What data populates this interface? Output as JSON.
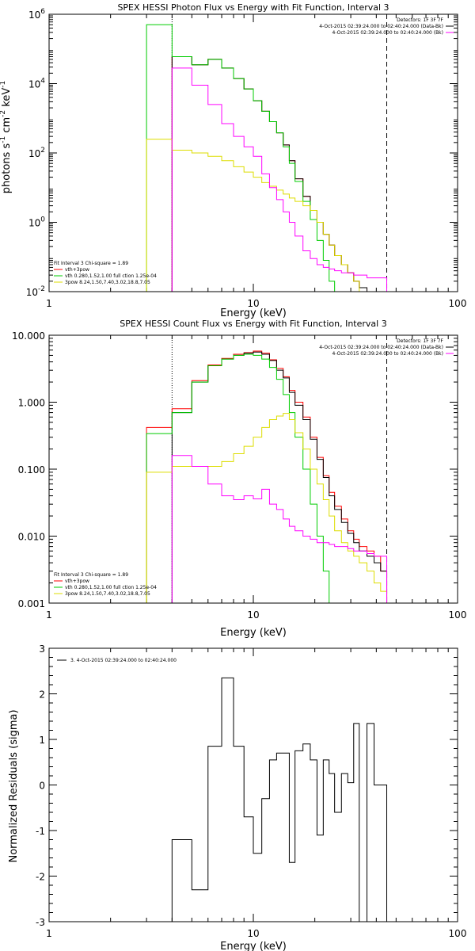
{
  "chart_data": [
    {
      "type": "line",
      "title": "SPEX HESSI Photon Flux vs Energy with Fit Function, Interval 3",
      "xlabel": "Energy (keV)",
      "ylabel_parts": [
        "photons s",
        "-1",
        " cm",
        "-2",
        " keV",
        "-1"
      ],
      "xscale": "log",
      "yscale": "log",
      "xlim": [
        1,
        100
      ],
      "ylim": [
        0.01,
        1000000
      ],
      "xticks": [
        {
          "v": 1,
          "label": "1"
        },
        {
          "v": 10,
          "label": "10"
        },
        {
          "v": 100,
          "label": "100"
        }
      ],
      "yticks": [
        {
          "v": 0.01,
          "base": "10",
          "exp": "-2"
        },
        {
          "v": 1,
          "base": "10",
          "exp": "0"
        },
        {
          "v": 100,
          "base": "10",
          "exp": "2"
        },
        {
          "v": 10000,
          "base": "10",
          "exp": "4"
        },
        {
          "v": 1000000,
          "base": "10",
          "exp": "6"
        }
      ],
      "vlines": [
        {
          "x": 4.0,
          "style": "dotted"
        },
        {
          "x": 45.0,
          "style": "dashed"
        }
      ],
      "legend_tr": [
        {
          "text": "Detectors: 1F 3F 7F",
          "color": ""
        },
        {
          "text": "4-Oct-2015 02:39:24.000 to 02:40:24.000 (Data-Bk)",
          "color": "#000000"
        },
        {
          "text": "4-Oct-2015 02:39:24.000 to 02:40:24.000 (Bk)",
          "color": "#ff00ff"
        }
      ],
      "legend_bl": [
        {
          "text": "Fit Interval 3   Chi-square = 1.89",
          "color": ""
        },
        {
          "text": "vth+3pow",
          "color": "#ff0000"
        },
        {
          "text": "vth 0.280,1.52,1.00  full ction 1.25e-04",
          "color": "#00cc00"
        },
        {
          "text": "3pow 8.24,1.50,7.40,3.02,18.8,7.05",
          "color": "#dddd00"
        }
      ],
      "edges": [
        3.0,
        4.0,
        5.0,
        6.0,
        7.0,
        8.0,
        9.0,
        10.0,
        11.0,
        12.0,
        13.0,
        14.0,
        15.0,
        16.0,
        17.5,
        19.0,
        20.5,
        22.0,
        23.5,
        25.0,
        27.0,
        29.0,
        31.0,
        33.0,
        36.0,
        39.0,
        42.0,
        45.0
      ],
      "series": [
        {
          "name": "vth+3pow",
          "color": "#ff0000",
          "start": 1,
          "values": [
            60000,
            35000,
            50000,
            28000,
            14000,
            7000,
            3200,
            1600,
            800,
            380,
            170,
            60,
            18,
            5.6,
            2.2,
            1.0,
            0.45,
            0.22,
            0.11,
            0.06,
            0.035,
            0.02,
            0.013,
            0.01,
            0.01,
            0.01
          ]
        },
        {
          "name": "Data-Bk",
          "color": "#000000",
          "start": 1,
          "values": [
            60000,
            35000,
            50000,
            28000,
            14000,
            7000,
            3200,
            1600,
            800,
            380,
            170,
            60,
            18,
            5.6,
            2.2,
            1.0,
            0.45,
            0.22,
            0.11,
            0.06,
            0.035,
            0.02,
            0.013,
            0.01,
            0.01,
            0.01
          ]
        },
        {
          "name": "vth",
          "color": "#00cc00",
          "start": 0,
          "values": [
            500000,
            60000,
            35000,
            50000,
            28000,
            14000,
            7000,
            3200,
            1600,
            800,
            380,
            150,
            50,
            15,
            4,
            1.2,
            0.3,
            0.08,
            0.02,
            0.01,
            0.01
          ]
        },
        {
          "name": "3pow",
          "color": "#dddd00",
          "start": 0,
          "values": [
            250,
            120,
            100,
            80,
            60,
            40,
            28,
            20,
            14,
            11,
            8.5,
            6.5,
            5.0,
            4.0,
            3.0,
            2.2,
            1.0,
            0.45,
            0.22,
            0.11,
            0.06,
            0.035,
            0.02,
            0.01,
            0.01,
            0.01,
            0.01
          ]
        },
        {
          "name": "Bk",
          "color": "#ff00ff",
          "start": 1,
          "values": [
            28000,
            9000,
            2500,
            700,
            300,
            150,
            80,
            25,
            10,
            4.5,
            2.0,
            1.0,
            0.4,
            0.15,
            0.09,
            0.06,
            0.05,
            0.045,
            0.04,
            0.035,
            0.035,
            0.03,
            0.03,
            0.025,
            0.025,
            0.025
          ]
        }
      ]
    },
    {
      "type": "line",
      "title": "SPEX HESSI Count Flux vs Energy with Fit Function, Interval 3",
      "xlabel": "Energy (keV)",
      "ylabel_parts": [],
      "xscale": "log",
      "yscale": "log",
      "xlim": [
        1,
        100
      ],
      "ylim": [
        0.001,
        10
      ],
      "xticks": [
        {
          "v": 1,
          "label": "1"
        },
        {
          "v": 10,
          "label": "10"
        },
        {
          "v": 100,
          "label": "100"
        }
      ],
      "yticks": [
        {
          "v": 0.001,
          "label": "0.001"
        },
        {
          "v": 0.01,
          "label": "0.010"
        },
        {
          "v": 0.1,
          "label": "0.100"
        },
        {
          "v": 1,
          "label": "1.000"
        },
        {
          "v": 10,
          "label": "10.000"
        }
      ],
      "vlines": [
        {
          "x": 4.0,
          "style": "dotted"
        },
        {
          "x": 45.0,
          "style": "dashed"
        }
      ],
      "legend_tr": [
        {
          "text": "Detectors: 1F 3F 7F",
          "color": ""
        },
        {
          "text": "4-Oct-2015 02:39:24.000 to 02:40:24.000 (Data-Bk)",
          "color": "#000000"
        },
        {
          "text": "4-Oct-2015 02:39:24.000 to 02:40:24.000 (Bk)",
          "color": "#ff00ff"
        }
      ],
      "legend_bl": [
        {
          "text": "Fit Interval 3   Chi-square = 1.89",
          "color": ""
        },
        {
          "text": "vth+3pow",
          "color": "#ff0000"
        },
        {
          "text": "vth 0.280,1.52,1.00  full ction 1.25e-04",
          "color": "#00cc00"
        },
        {
          "text": "3pow 8.24,1.50,7.40,3.02,18.8,7.05",
          "color": "#dddd00"
        }
      ],
      "edges": [
        3.0,
        4.0,
        5.0,
        6.0,
        7.0,
        8.0,
        9.0,
        10.0,
        11.0,
        12.0,
        13.0,
        14.0,
        15.0,
        16.0,
        17.5,
        19.0,
        20.5,
        22.0,
        23.5,
        25.0,
        27.0,
        29.0,
        31.0,
        33.0,
        36.0,
        39.0,
        42.0,
        45.0
      ],
      "series": [
        {
          "name": "vth+3pow",
          "color": "#ff0000",
          "start": 0,
          "values": [
            0.42,
            0.8,
            2.1,
            3.6,
            4.5,
            5.2,
            5.5,
            5.8,
            5.4,
            4.3,
            3.2,
            2.4,
            1.5,
            1.0,
            0.6,
            0.3,
            0.15,
            0.08,
            0.045,
            0.028,
            0.018,
            0.012,
            0.009,
            0.007,
            0.006,
            0.005,
            0.003
          ]
        },
        {
          "name": "Data-Bk",
          "color": "#000000",
          "start": 1,
          "values": [
            0.7,
            2.0,
            3.5,
            4.4,
            5.0,
            5.4,
            5.6,
            5.2,
            4.2,
            3.0,
            2.3,
            1.4,
            0.9,
            0.55,
            0.28,
            0.14,
            0.075,
            0.04,
            0.025,
            0.016,
            0.011,
            0.008,
            0.006,
            0.005,
            0.004,
            0.003
          ]
        },
        {
          "name": "vth",
          "color": "#00cc00",
          "start": 0,
          "values": [
            0.34,
            0.7,
            2.0,
            3.5,
            4.4,
            5.0,
            5.2,
            5.0,
            4.4,
            3.3,
            2.2,
            1.3,
            0.7,
            0.3,
            0.1,
            0.03,
            0.01,
            0.003,
            0.001,
            0.0005
          ]
        },
        {
          "name": "3pow",
          "color": "#dddd00",
          "start": 0,
          "values": [
            0.09,
            0.11,
            0.11,
            0.11,
            0.13,
            0.17,
            0.22,
            0.3,
            0.42,
            0.55,
            0.62,
            0.68,
            0.55,
            0.35,
            0.2,
            0.1,
            0.06,
            0.035,
            0.02,
            0.012,
            0.008,
            0.006,
            0.005,
            0.004,
            0.003,
            0.002,
            0.0015
          ]
        },
        {
          "name": "Bk",
          "color": "#ff00ff",
          "start": 1,
          "values": [
            0.16,
            0.11,
            0.06,
            0.04,
            0.035,
            0.04,
            0.036,
            0.05,
            0.03,
            0.025,
            0.018,
            0.014,
            0.012,
            0.01,
            0.009,
            0.008,
            0.008,
            0.0075,
            0.007,
            0.007,
            0.0065,
            0.006,
            0.006,
            0.0055,
            0.005,
            0.005
          ]
        }
      ]
    },
    {
      "type": "line",
      "title": "",
      "xlabel": "Energy (keV)",
      "ylabel": "Normalized Residuals (sigma)",
      "xscale": "log",
      "yscale": "linear",
      "xlim": [
        1,
        100
      ],
      "ylim": [
        -3,
        3
      ],
      "xticks": [
        {
          "v": 1,
          "label": "1"
        },
        {
          "v": 10,
          "label": "10"
        },
        {
          "v": 100,
          "label": "100"
        }
      ],
      "yticks": [
        {
          "v": -3,
          "label": "-3"
        },
        {
          "v": -2,
          "label": "-2"
        },
        {
          "v": -1,
          "label": "-1"
        },
        {
          "v": 0,
          "label": "0"
        },
        {
          "v": 1,
          "label": "1"
        },
        {
          "v": 2,
          "label": "2"
        },
        {
          "v": 3,
          "label": "3"
        }
      ],
      "vlines": [],
      "legend_tl": [
        {
          "text": "3.  4-Oct-2015 02:39:24.000 to 02:40:24.000",
          "color": "#000000"
        }
      ],
      "edges": [
        4.0,
        5.0,
        6.0,
        7.0,
        8.0,
        9.0,
        10.0,
        11.0,
        12.0,
        13.0,
        14.0,
        15.0,
        16.0,
        17.5,
        19.0,
        20.5,
        22.0,
        23.5,
        25.0,
        27.0,
        29.0,
        31.0,
        33.0,
        36.0,
        39.0,
        42.0,
        45.0
      ],
      "series": [
        {
          "name": "residuals",
          "color": "#000000",
          "start": 0,
          "values": [
            -1.2,
            -2.3,
            0.85,
            2.35,
            0.85,
            -0.7,
            -1.5,
            -0.3,
            0.55,
            0.7,
            0.7,
            -1.7,
            0.75,
            0.9,
            0.55,
            -1.1,
            0.55,
            0.25,
            -0.6,
            0.25,
            0.05,
            1.35,
            -3.0,
            1.35,
            0.0,
            0.0
          ]
        }
      ]
    }
  ]
}
